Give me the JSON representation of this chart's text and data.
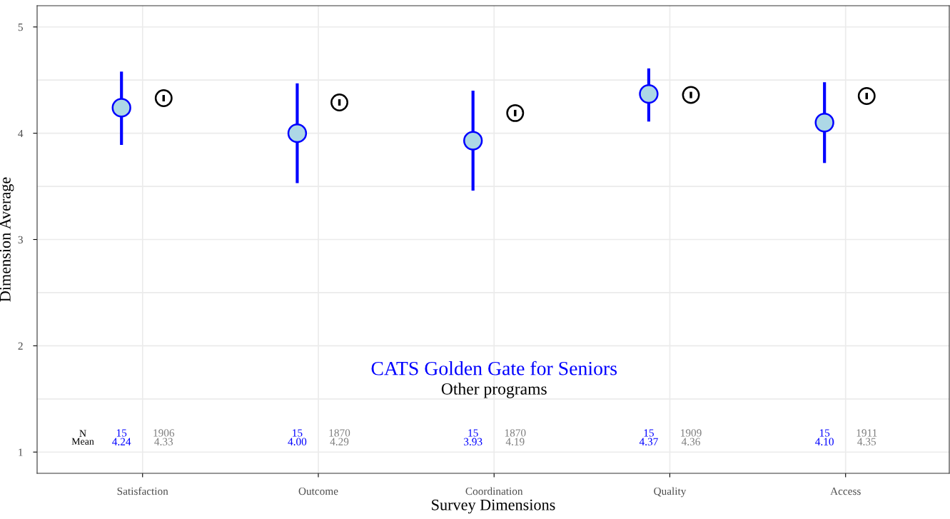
{
  "chart_data": {
    "type": "scatter",
    "xlabel": "Survey Dimensions",
    "ylabel": "Dimension Average",
    "categories": [
      "Satisfaction",
      "Outcome",
      "Coordination",
      "Quality",
      "Access"
    ],
    "series": [
      {
        "name": "CATS Golden Gate for Seniors",
        "color": "#0000ff",
        "values": [
          4.24,
          4.0,
          3.93,
          4.37,
          4.1
        ],
        "errors": [
          [
            3.89,
            4.58
          ],
          [
            3.53,
            4.47
          ],
          [
            3.46,
            4.4
          ],
          [
            4.11,
            4.61
          ],
          [
            3.72,
            4.48
          ]
        ]
      },
      {
        "name": "Other programs",
        "color": "#000000",
        "values": [
          4.33,
          4.29,
          4.19,
          4.36,
          4.35
        ],
        "errors": [
          0.03,
          0.03,
          0.03,
          0.03,
          0.03
        ]
      }
    ],
    "annotations": [
      "N\nMean",
      "15\n4.24",
      "1906\n4.33",
      "15\n4.00",
      "1870\n4.29",
      "15\n3.93",
      "1870\n4.19",
      "15\n4.37",
      "1909\n4.36",
      "15\n4.10",
      "1911\n4.35"
    ],
    "ylim": [
      0.8,
      5.2
    ],
    "yticks": [
      1,
      2,
      3,
      4,
      5
    ],
    "grid": true,
    "marker": "circle"
  }
}
